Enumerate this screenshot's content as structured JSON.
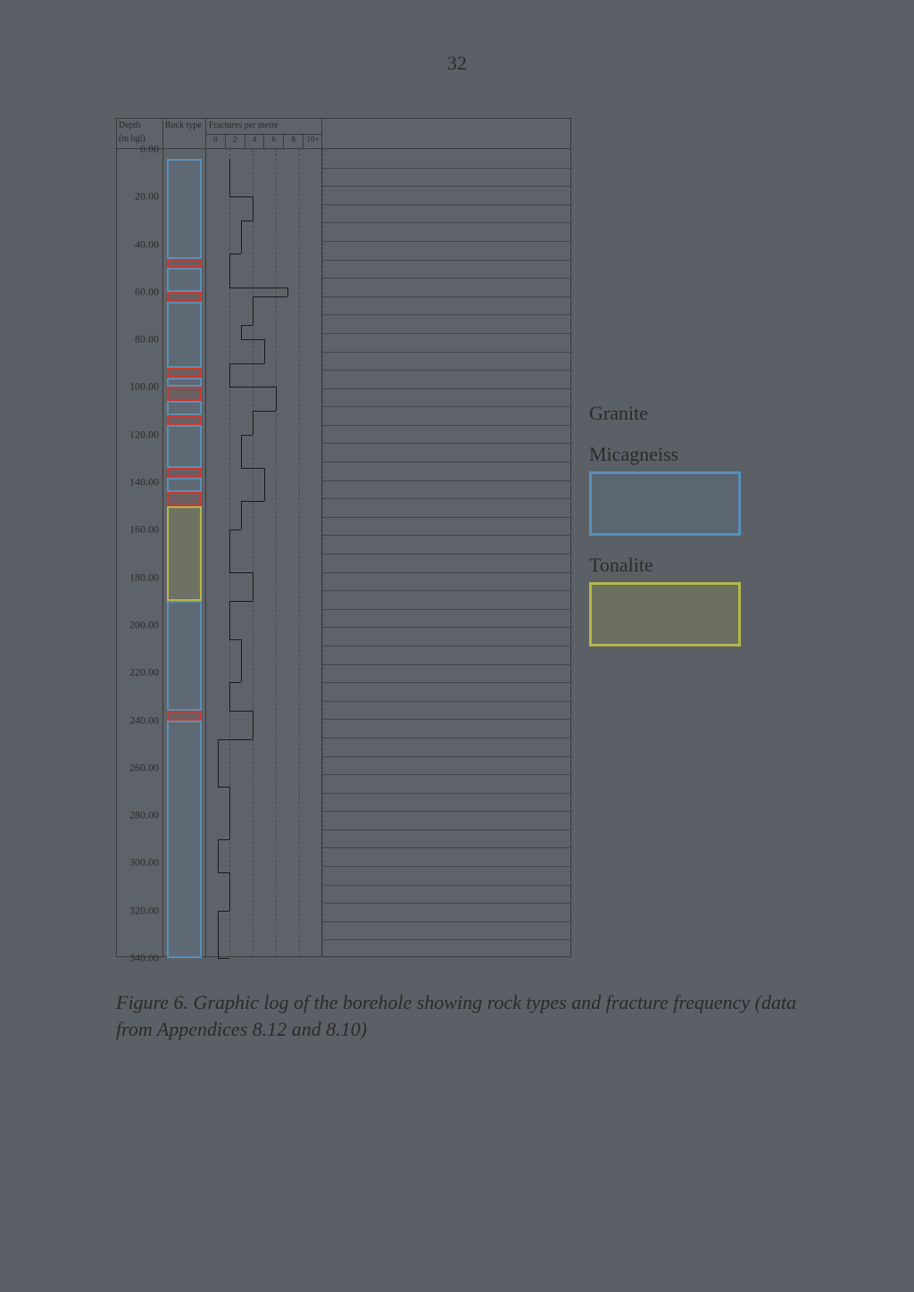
{
  "page_number": "32",
  "caption": "Figure 6. Graphic log of the borehole showing rock types and fracture frequency (data from Appendices 8.12 and 8.10)",
  "headers": {
    "depth_line1": "Depth",
    "depth_line2": "(m bgl)",
    "rock": "Rock type",
    "frac": "Fractures per metre",
    "frac_ticks": [
      "0",
      "2",
      "4",
      "6",
      "8",
      "10+"
    ]
  },
  "depth_axis": {
    "min": 0,
    "max": 340,
    "step": 20,
    "label_suffix": ".00"
  },
  "colors": {
    "granite": {
      "stroke": "#c83a2e",
      "fill": "rgba(200,58,46,0.15)"
    },
    "micagneiss": {
      "stroke": "#5b8fb5",
      "fill": "rgba(91,143,181,0.15)"
    },
    "tonalite": {
      "stroke": "#b5b74a",
      "fill": "rgba(181,183,74,0.18)"
    },
    "grid": "#3a3a3a",
    "background": "#5b6066",
    "text": "#2a2a2a"
  },
  "legend": [
    {
      "label": "Granite",
      "color_key": "granite"
    },
    {
      "label": "Micagneiss",
      "color_key": "micagneiss"
    },
    {
      "label": "Tonalite",
      "color_key": "tonalite"
    }
  ],
  "rock_segments": [
    {
      "from": 4,
      "to": 46,
      "type": "micagneiss"
    },
    {
      "from": 46,
      "to": 50,
      "type": "granite"
    },
    {
      "from": 50,
      "to": 60,
      "type": "micagneiss"
    },
    {
      "from": 60,
      "to": 64,
      "type": "granite"
    },
    {
      "from": 64,
      "to": 92,
      "type": "micagneiss"
    },
    {
      "from": 92,
      "to": 96,
      "type": "granite"
    },
    {
      "from": 96,
      "to": 100,
      "type": "micagneiss"
    },
    {
      "from": 100,
      "to": 106,
      "type": "granite"
    },
    {
      "from": 106,
      "to": 112,
      "type": "micagneiss"
    },
    {
      "from": 112,
      "to": 116,
      "type": "granite"
    },
    {
      "from": 116,
      "to": 134,
      "type": "micagneiss"
    },
    {
      "from": 134,
      "to": 138,
      "type": "granite"
    },
    {
      "from": 138,
      "to": 144,
      "type": "micagneiss"
    },
    {
      "from": 144,
      "to": 150,
      "type": "granite"
    },
    {
      "from": 150,
      "to": 190,
      "type": "tonalite"
    },
    {
      "from": 190,
      "to": 236,
      "type": "micagneiss"
    },
    {
      "from": 236,
      "to": 240,
      "type": "granite"
    },
    {
      "from": 240,
      "to": 340,
      "type": "micagneiss"
    }
  ],
  "fracture_axis": {
    "min": 0,
    "max": 10,
    "grid_step": 2
  },
  "fracture_profile": [
    {
      "depth": 4,
      "value": 2
    },
    {
      "depth": 20,
      "value": 4
    },
    {
      "depth": 30,
      "value": 3
    },
    {
      "depth": 44,
      "value": 2
    },
    {
      "depth": 58,
      "value": 7
    },
    {
      "depth": 62,
      "value": 4
    },
    {
      "depth": 74,
      "value": 3
    },
    {
      "depth": 80,
      "value": 5
    },
    {
      "depth": 90,
      "value": 2
    },
    {
      "depth": 100,
      "value": 6
    },
    {
      "depth": 110,
      "value": 4
    },
    {
      "depth": 120,
      "value": 3
    },
    {
      "depth": 134,
      "value": 5
    },
    {
      "depth": 148,
      "value": 3
    },
    {
      "depth": 160,
      "value": 2
    },
    {
      "depth": 178,
      "value": 4
    },
    {
      "depth": 190,
      "value": 2
    },
    {
      "depth": 206,
      "value": 3
    },
    {
      "depth": 224,
      "value": 2
    },
    {
      "depth": 236,
      "value": 4
    },
    {
      "depth": 248,
      "value": 1
    },
    {
      "depth": 268,
      "value": 2
    },
    {
      "depth": 290,
      "value": 1
    },
    {
      "depth": 304,
      "value": 2
    },
    {
      "depth": 320,
      "value": 1
    },
    {
      "depth": 340,
      "value": 2
    }
  ],
  "description_rule_count": 44
}
